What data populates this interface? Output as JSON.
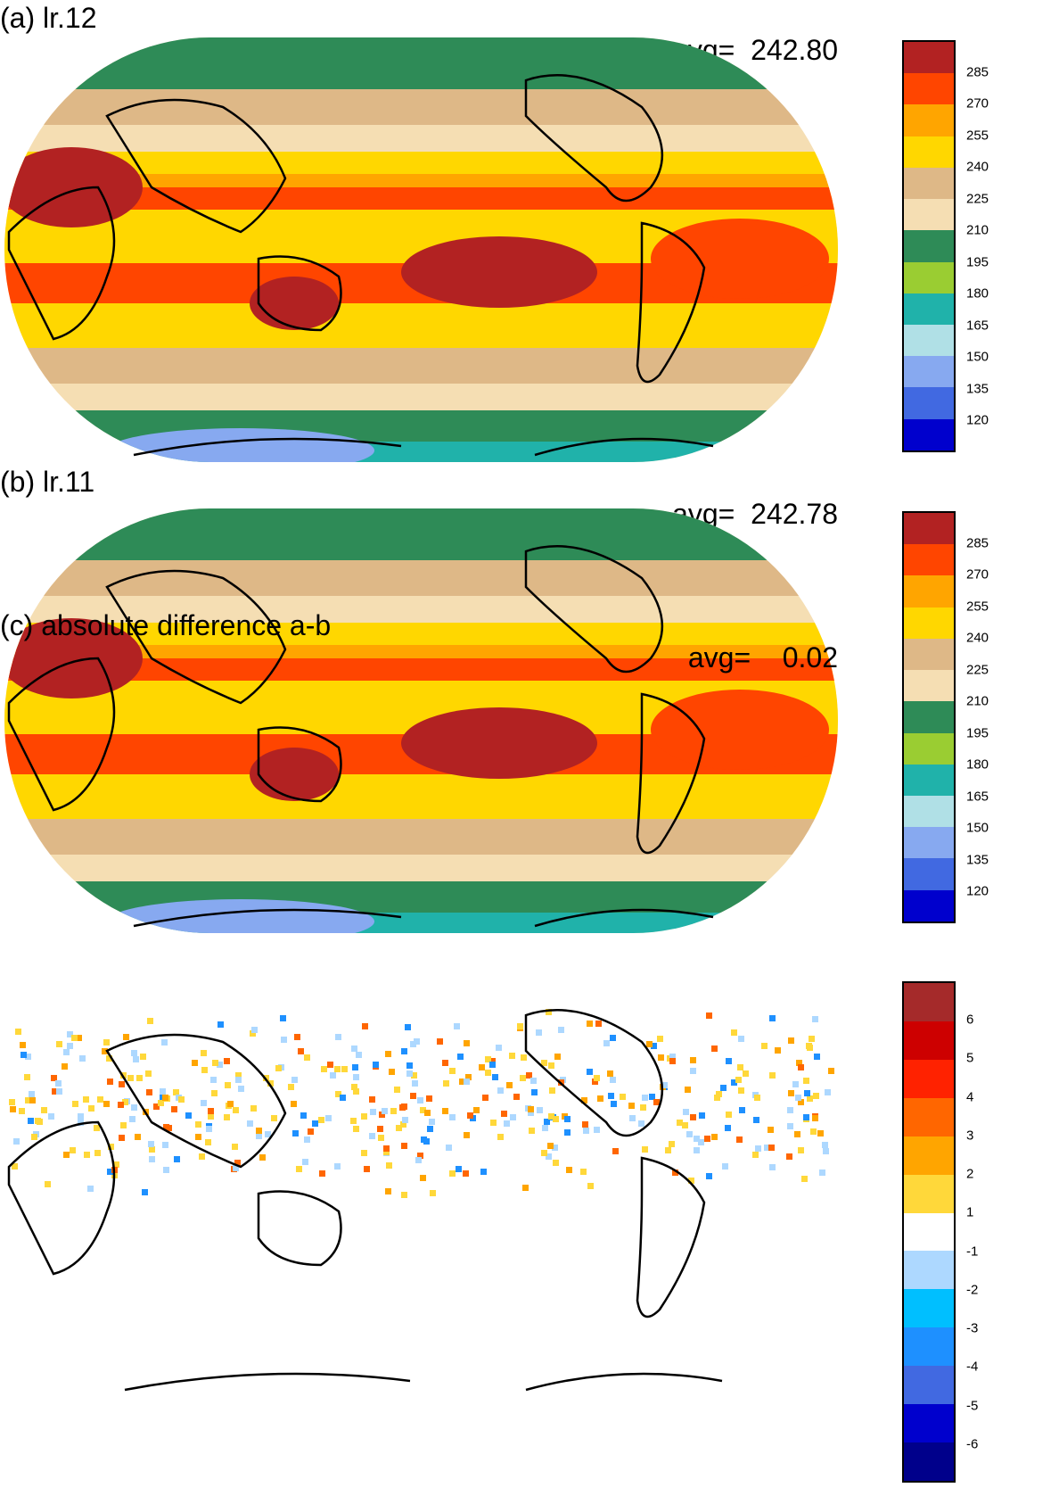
{
  "panels": [
    {
      "title": "(a) lr.12",
      "avg_label": "avg=",
      "avg_value": "242.80"
    },
    {
      "title": "(b) lr.11",
      "avg_label": "avg=",
      "avg_value": "242.78"
    },
    {
      "title": "(c) absolute difference a-b",
      "avg_label": "avg=",
      "avg_value": "0.02"
    }
  ],
  "colorbar_main": {
    "labels": [
      "285",
      "270",
      "255",
      "240",
      "225",
      "210",
      "195",
      "180",
      "165",
      "150",
      "135",
      "120"
    ],
    "colors": [
      "#b22222",
      "#ff4500",
      "#ffa500",
      "#ffd700",
      "#deb887",
      "#f5deb3",
      "#2e8b57",
      "#9acd32",
      "#20b2aa",
      "#b0e0e6",
      "#87a9f0",
      "#4169e1",
      "#0000cd"
    ]
  },
  "colorbar_diff": {
    "labels": [
      "6",
      "5",
      "4",
      "3",
      "2",
      "1",
      "-1",
      "-2",
      "-3",
      "-4",
      "-5",
      "-6"
    ],
    "colors": [
      "#a52a2a",
      "#cd0000",
      "#ff2200",
      "#ff6600",
      "#ffa500",
      "#ffd83a",
      "#ffffff",
      "#add8ff",
      "#00bfff",
      "#1e90ff",
      "#4169e1",
      "#0000cd",
      "#00008b"
    ]
  }
}
